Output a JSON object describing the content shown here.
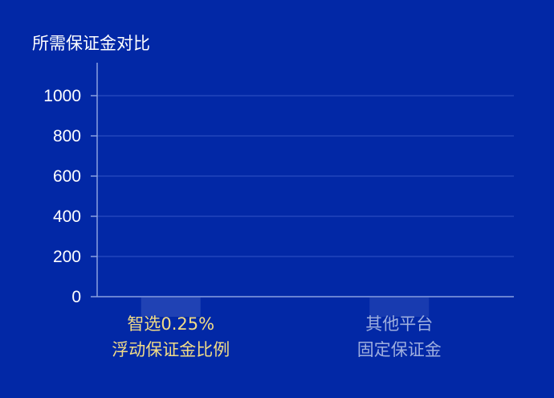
{
  "chart_data": {
    "type": "bar",
    "ylabel": "所需保证金对比",
    "ylim": [
      0,
      1000
    ],
    "yticks": [
      "0",
      "200",
      "400",
      "600",
      "800",
      "1000"
    ],
    "categories": [
      "智选0.25%\n浮动保证金比例",
      "其他平台\n固定保证金"
    ],
    "values": [
      0,
      0
    ],
    "grid": true,
    "colors": {
      "background": "#0228a6",
      "axis": "#8aa0e0",
      "grid": "#2a4cc0",
      "tick_label": "#ffffff",
      "highlight_label": "#f2dc86",
      "muted_label": "#9eaede",
      "bar_highlight": "#3a58c0",
      "bar_muted": "#2c4ab8"
    }
  }
}
